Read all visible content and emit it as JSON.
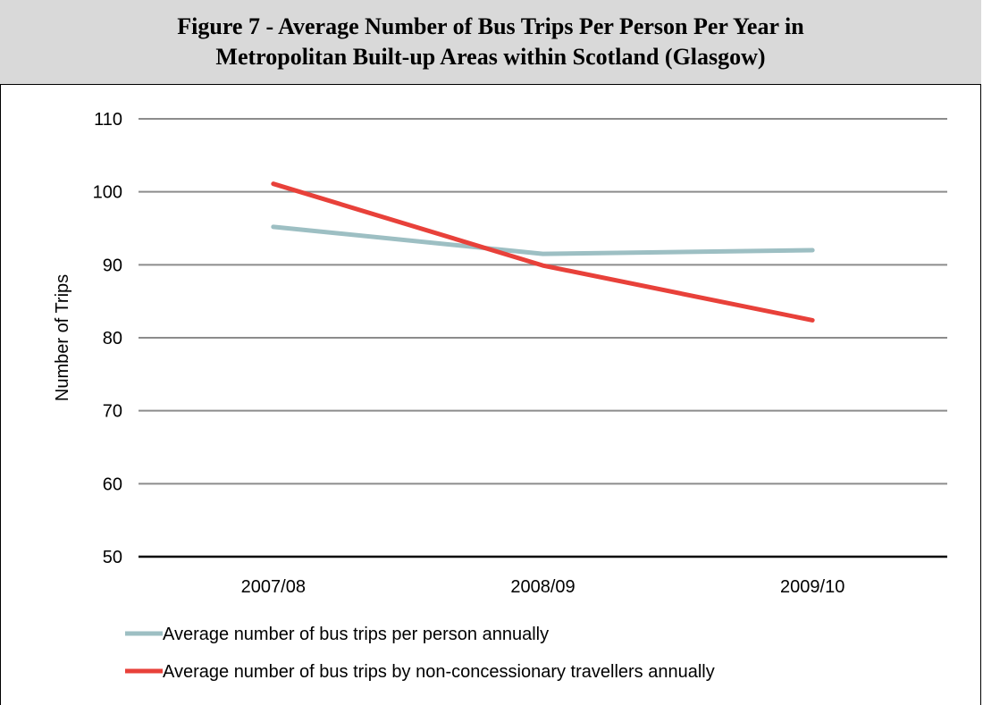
{
  "figure": {
    "title_line1": "Figure 7 - Average Number of Bus Trips Per Person Per Year in",
    "title_line2": "Metropolitan Built-up Areas within Scotland (Glasgow)"
  },
  "chart_data": {
    "type": "line",
    "title": "Figure 7 - Average Number of Bus Trips Per Person Per Year in Metropolitan Built-up Areas within Scotland (Glasgow)",
    "xlabel": "",
    "ylabel": "Number of Trips",
    "categories": [
      "2007/08",
      "2008/09",
      "2009/10"
    ],
    "ylim": [
      50,
      110
    ],
    "yticks": [
      50,
      60,
      70,
      80,
      90,
      100,
      110
    ],
    "grid": true,
    "legend_position": "bottom",
    "series": [
      {
        "name": "Average number of bus trips per person annually",
        "values": [
          95.2,
          91.5,
          92.0
        ],
        "color": "#9dbfc3"
      },
      {
        "name": "Average number of bus trips by non-concessionary travellers annually",
        "values": [
          101.1,
          89.9,
          82.4
        ],
        "color": "#e8413a"
      }
    ]
  }
}
